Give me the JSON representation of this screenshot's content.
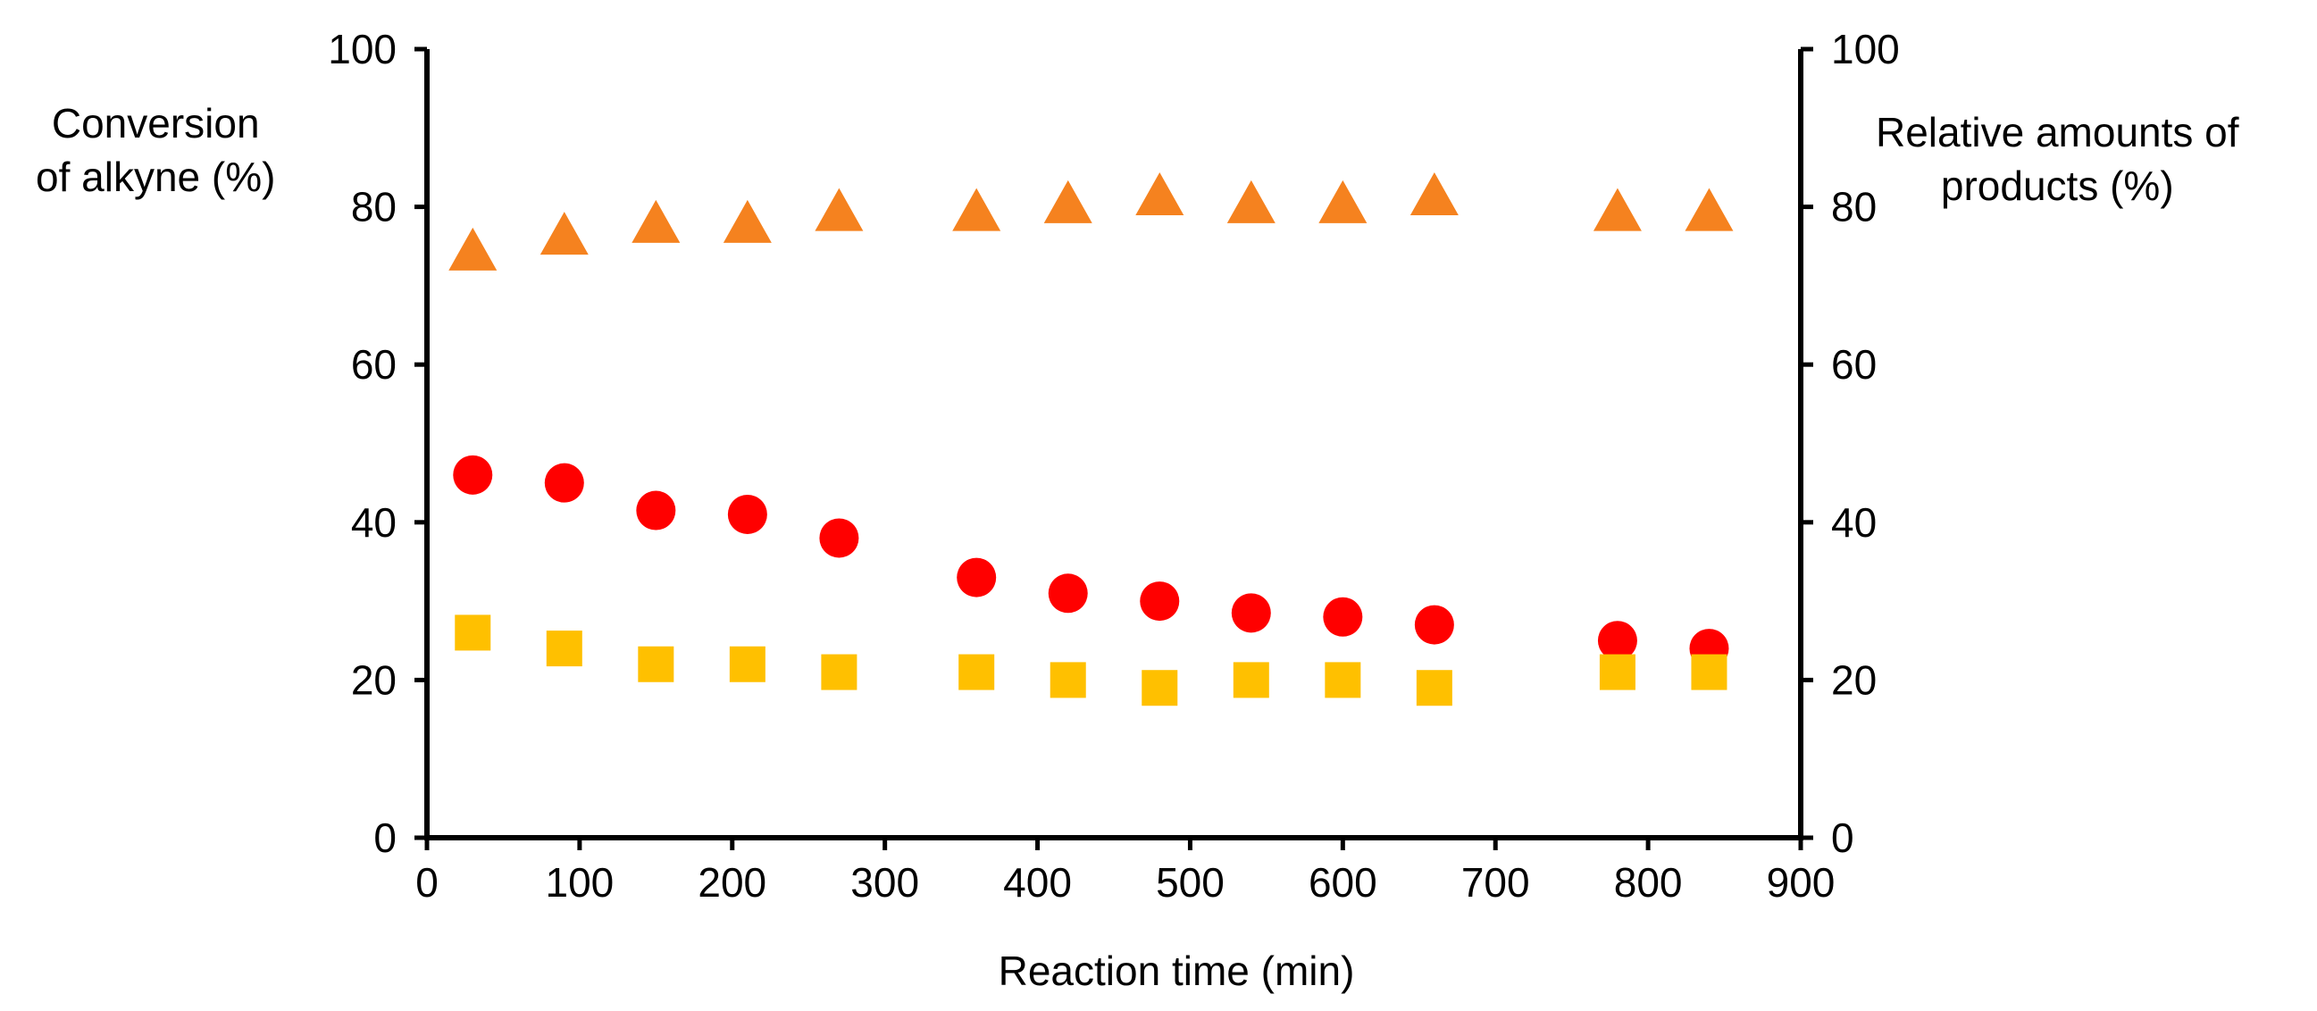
{
  "chart_data": {
    "type": "scatter",
    "title": "",
    "xlabel": "Reaction time (min)",
    "ylabel_left": [
      "Conversion",
      "of alkyne (%)"
    ],
    "ylabel_right": [
      "Relative amounts of",
      "products (%)"
    ],
    "xlim": [
      0,
      900
    ],
    "ylim": [
      0,
      100
    ],
    "x_ticks": [
      "0",
      "100",
      "200",
      "300",
      "400",
      "500",
      "600",
      "700",
      "800",
      "900"
    ],
    "y_ticks": [
      "0",
      "20",
      "40",
      "60",
      "80",
      "100"
    ],
    "grid": false,
    "legend": "none",
    "x": [
      30,
      90,
      150,
      210,
      270,
      360,
      420,
      480,
      540,
      600,
      660,
      780,
      840
    ],
    "series": [
      {
        "name": "triangle",
        "marker": "triangle",
        "color": "#F5821F",
        "axis": "right",
        "values": [
          74,
          76,
          77.5,
          77.5,
          79,
          79,
          80,
          81,
          80,
          80,
          81,
          79,
          79
        ]
      },
      {
        "name": "circle",
        "marker": "circle",
        "color": "#FF0000",
        "axis": "left",
        "values": [
          46,
          45,
          41.5,
          41,
          38,
          33,
          31,
          30,
          28.5,
          28,
          27,
          25,
          24
        ]
      },
      {
        "name": "square",
        "marker": "square",
        "color": "#FFC000",
        "axis": "right",
        "values": [
          26,
          24,
          22,
          22,
          21,
          21,
          20,
          19,
          20,
          20,
          19,
          21,
          21
        ]
      }
    ]
  }
}
